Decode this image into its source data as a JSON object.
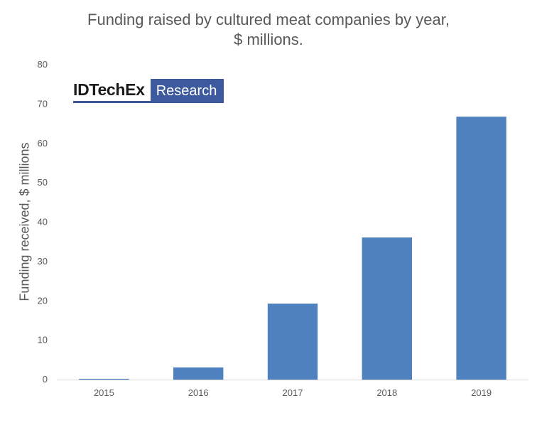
{
  "chart_data": {
    "type": "bar",
    "title_lines": [
      "Funding  raised by cultured  meat  companies  by year,",
      "$ millions."
    ],
    "xlabel": "",
    "ylabel": "Funding  received,  $ millions",
    "categories": [
      "2015",
      "2016",
      "2017",
      "2018",
      "2019"
    ],
    "values": [
      0.2,
      3.1,
      19.3,
      36.1,
      66.8
    ],
    "ylim": [
      0,
      80
    ],
    "yticks": [
      "0",
      "10",
      "20",
      "30",
      "40",
      "50",
      "60",
      "70",
      "80"
    ],
    "bar_color": "#4e81bd",
    "grid": false,
    "legend": "none"
  },
  "logo": {
    "left_text": "IDTechEx",
    "right_text": "Research",
    "brand_color": "#3e5a9e"
  }
}
